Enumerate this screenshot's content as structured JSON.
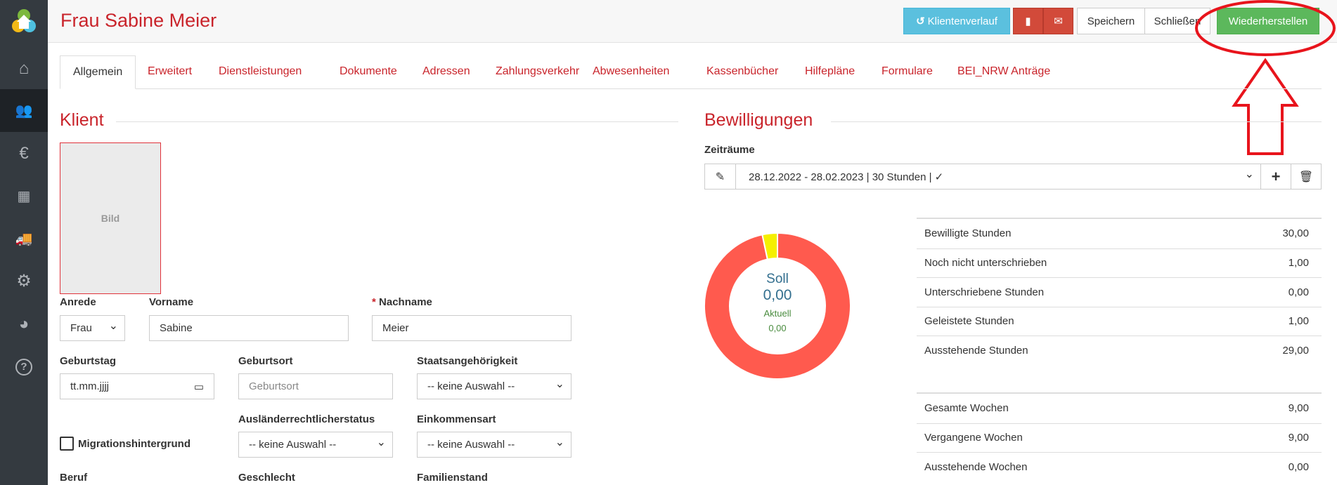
{
  "sidebar": {
    "items": [
      {
        "icon": "logo-icon"
      },
      {
        "icon": "home-icon"
      },
      {
        "icon": "users-icon",
        "active": true
      },
      {
        "icon": "euro-icon"
      },
      {
        "icon": "calendar-icon"
      },
      {
        "icon": "truck-icon"
      },
      {
        "icon": "gears-icon"
      },
      {
        "icon": "pie-chart-icon"
      },
      {
        "icon": "help-icon"
      }
    ]
  },
  "header": {
    "title": "Frau Sabine Meier",
    "buttons": {
      "history": "Klientenverlauf",
      "save": "Speichern",
      "close": "Schließen",
      "restore": "Wiederherstellen"
    }
  },
  "tabs": [
    "Allgemein",
    "Erweitert",
    "Dienstleistungen",
    "Dokumente",
    "Adressen",
    "Zahlungsverkehr",
    "Abwesenheiten",
    "Kassenbücher",
    "Hilfepläne",
    "Formulare",
    "BEI_NRW Anträge"
  ],
  "klient": {
    "heading": "Klient",
    "image_label": "Bild",
    "anrede_label": "Anrede",
    "anrede_value": "Frau",
    "vorname_label": "Vorname",
    "vorname_value": "Sabine",
    "nachname_required": "*",
    "nachname_label": "Nachname",
    "nachname_value": "Meier",
    "geburtstag_label": "Geburtstag",
    "geburtstag_value": "tt.mm.jjjj",
    "geburtsort_label": "Geburtsort",
    "geburtsort_placeholder": "Geburtsort",
    "staat_label": "Staatsangehörigkeit",
    "staat_value": "-- keine Auswahl --",
    "migration_label": "Migrationshintergrund",
    "auslaender_label": "Ausländerrechtlicherstatus",
    "auslaender_value": "-- keine Auswahl --",
    "einkommen_label": "Einkommensart",
    "einkommen_value": "-- keine Auswahl --",
    "beruf_label": "Beruf",
    "geschlecht_label": "Geschlecht",
    "familienstand_label": "Familienstand"
  },
  "bewilligungen": {
    "heading": "Bewilligungen",
    "zeitraeume_label": "Zeiträume",
    "zeitraum_value": "28.12.2022 - 28.02.2023 | 30 Stunden | ✓",
    "donut": {
      "soll_label": "Soll",
      "soll_value": "0,00",
      "aktuell_label": "Aktuell",
      "aktuell_value": "0,00",
      "segments": [
        {
          "value": 29,
          "color": "#ff5a4e"
        },
        {
          "value": 1,
          "color": "#f5ef00"
        }
      ]
    },
    "stats": [
      {
        "label": "Bewilligte Stunden",
        "value": "30,00"
      },
      {
        "label": "Noch nicht unterschrieben",
        "value": "1,00"
      },
      {
        "label": "Unterschriebene Stunden",
        "value": "0,00"
      },
      {
        "label": "Geleistete Stunden",
        "value": "1,00"
      },
      {
        "label": "Ausstehende Stunden",
        "value": "29,00"
      }
    ],
    "weeks": [
      {
        "label": "Gesamte Wochen",
        "value": "9,00"
      },
      {
        "label": "Vergangene Wochen",
        "value": "9,00"
      },
      {
        "label": "Ausstehende Wochen",
        "value": "0,00"
      }
    ]
  },
  "colors": {
    "brand": "#c9242b",
    "info": "#5bc0de",
    "danger": "#d24a3a",
    "success": "#5cb85c",
    "annotation": "#e8141c"
  }
}
